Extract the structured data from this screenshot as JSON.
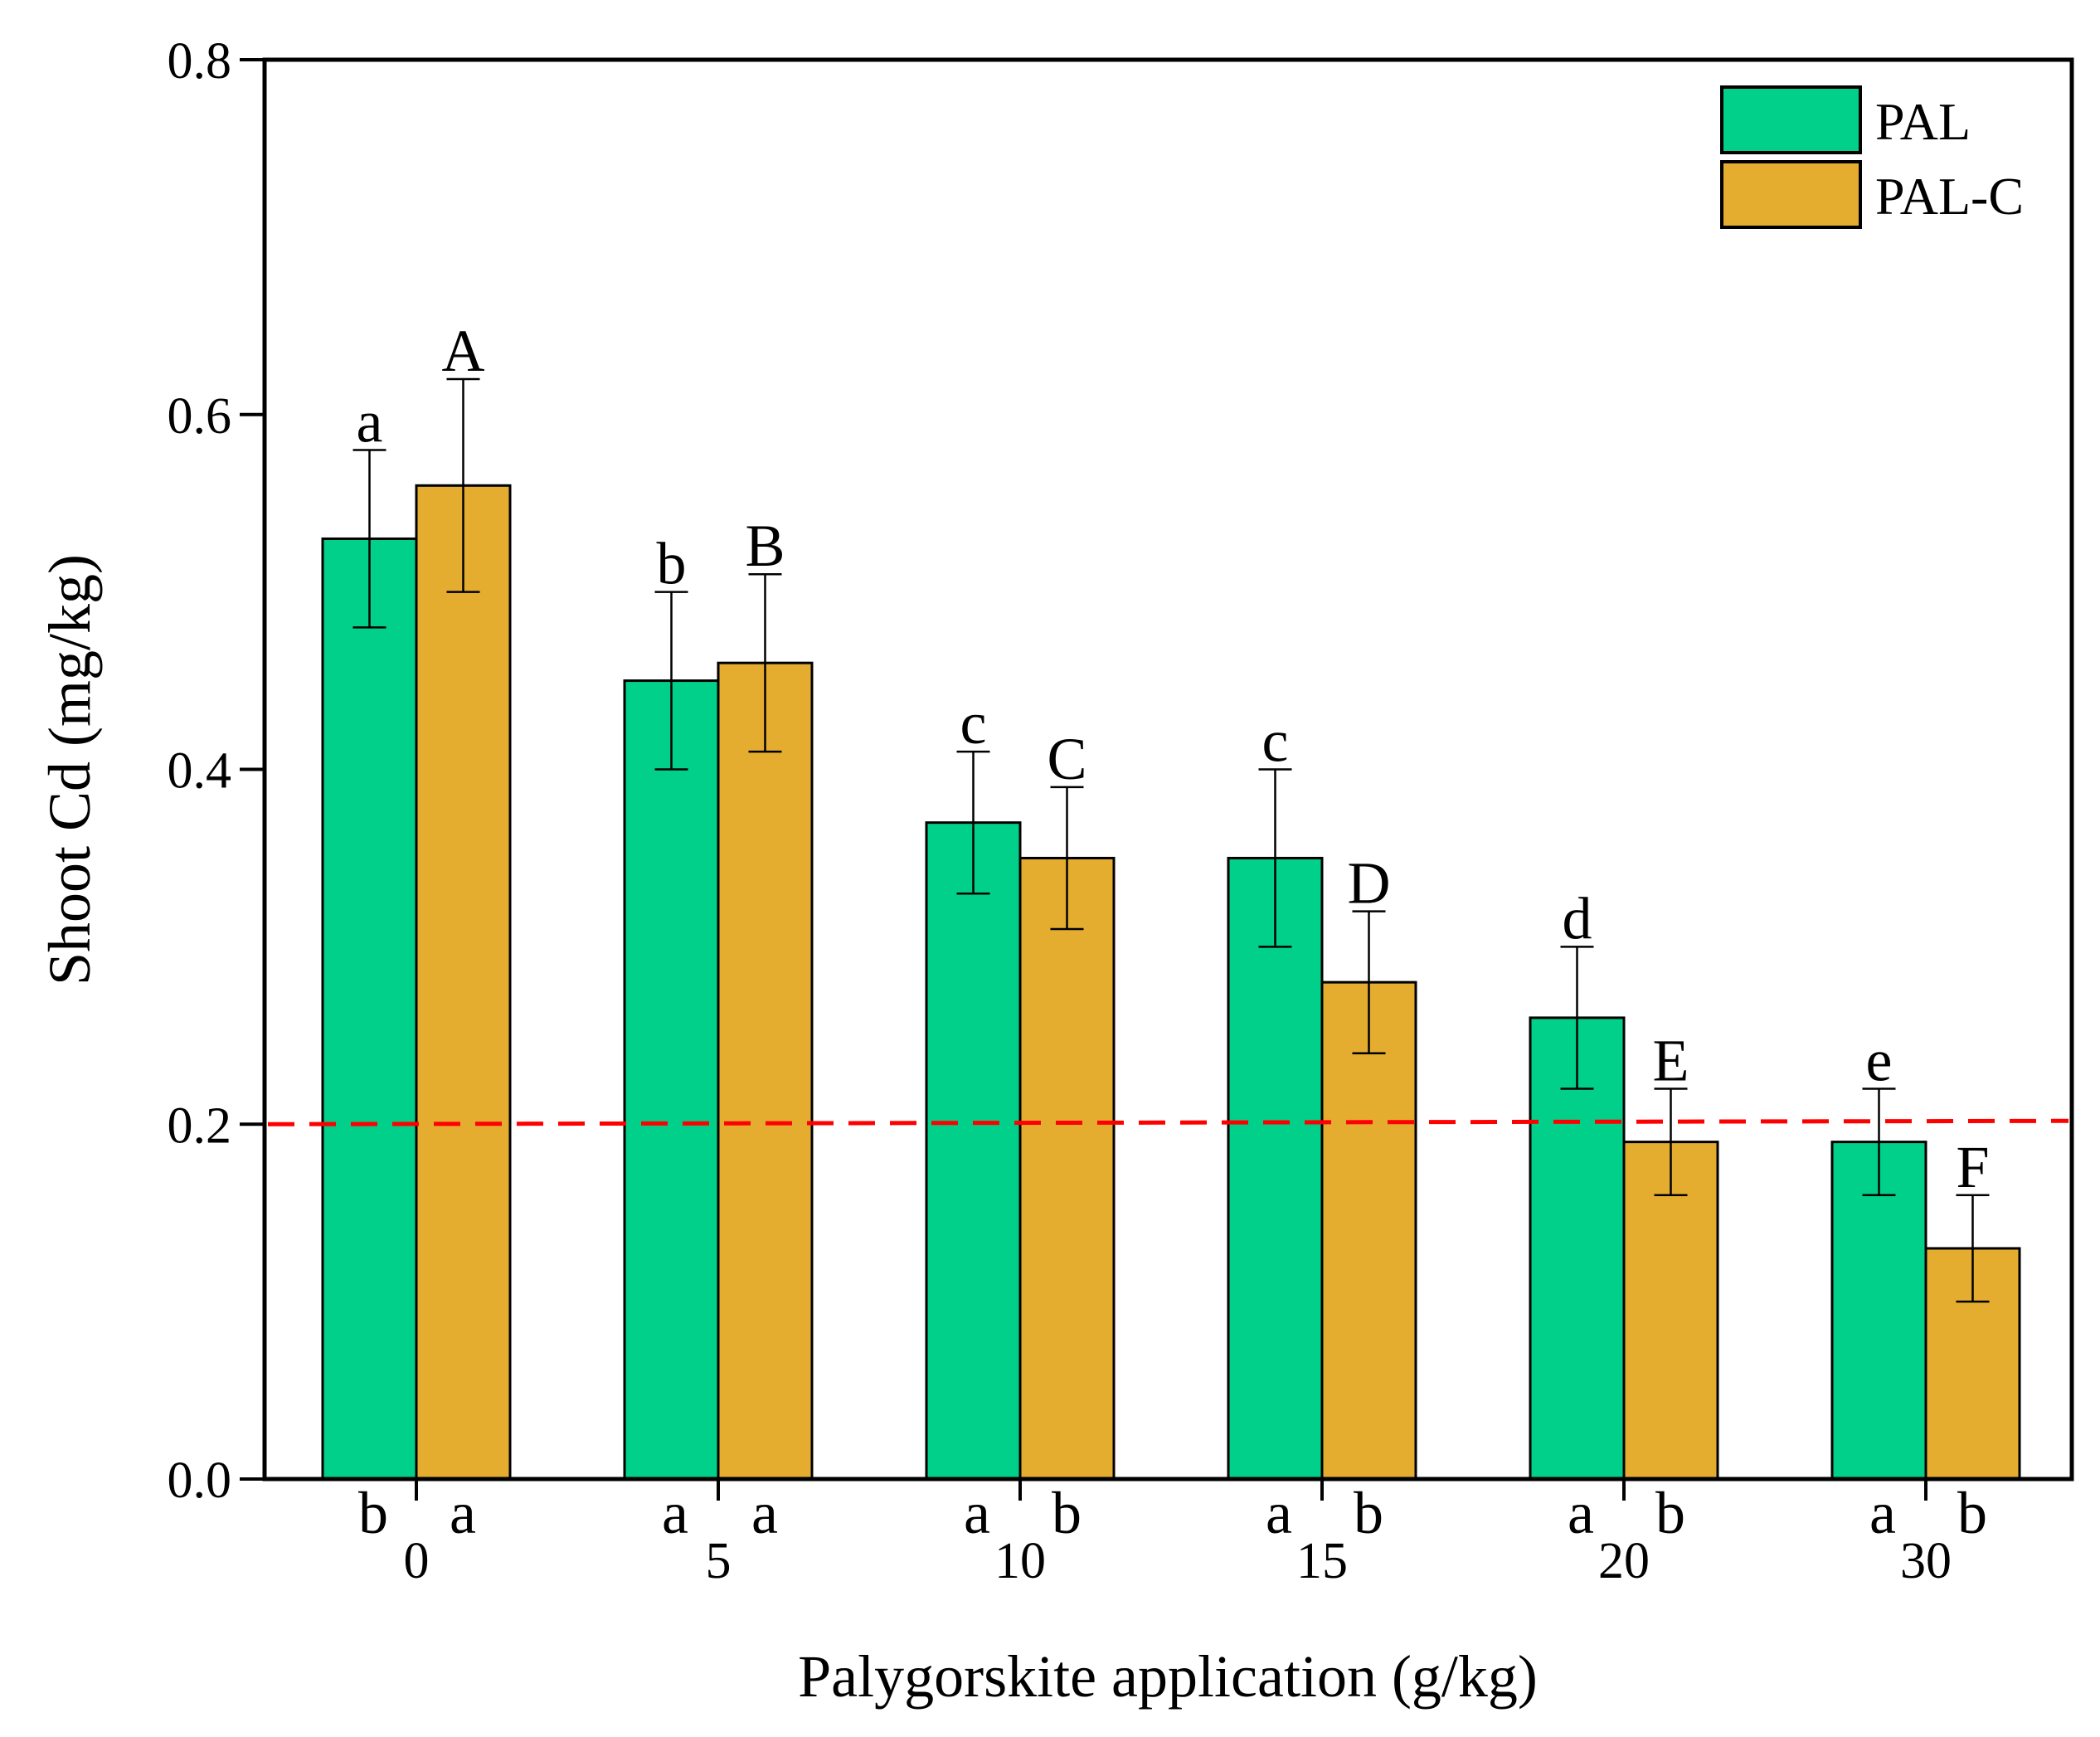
{
  "chart_data": {
    "type": "bar",
    "title": "",
    "xlabel": "Palygorskite application (g/kg)",
    "ylabel": "Shoot Cd (mg/kg)",
    "ylim": [
      0,
      0.8
    ],
    "yticks": [
      {
        "value": 0.0,
        "label": "0.0"
      },
      {
        "value": 0.2,
        "label": "0.2"
      },
      {
        "value": 0.4,
        "label": "0.4"
      },
      {
        "value": 0.6,
        "label": "0.6"
      },
      {
        "value": 0.8,
        "label": "0.8"
      }
    ],
    "categories": [
      "0",
      "5",
      "10",
      "15",
      "20",
      "30"
    ],
    "series": [
      {
        "name": "PAL",
        "color": "#00d08a",
        "values": [
          0.53,
          0.45,
          0.37,
          0.35,
          0.26,
          0.19
        ],
        "errors": [
          0.05,
          0.05,
          0.04,
          0.05,
          0.04,
          0.03
        ],
        "letters": [
          "a",
          "b",
          "c",
          "c",
          "d",
          "e"
        ],
        "bottom_letters": [
          "b",
          "a",
          "a",
          "a",
          "a",
          "a"
        ]
      },
      {
        "name": "PAL-C",
        "color": "#e5ad2f",
        "values": [
          0.56,
          0.46,
          0.35,
          0.28,
          0.19,
          0.13
        ],
        "errors": [
          0.06,
          0.05,
          0.04,
          0.04,
          0.03,
          0.03
        ],
        "letters": [
          "A",
          "B",
          "C",
          "D",
          "E",
          "F"
        ],
        "bottom_letters": [
          "a",
          "a",
          "b",
          "b",
          "b",
          "b"
        ]
      }
    ],
    "reference_line": {
      "value": 0.2,
      "color": "#ff0000",
      "style": "dashed"
    },
    "legend": {
      "position": "top-right",
      "entries": [
        "PAL",
        "PAL-C"
      ]
    },
    "grid": false
  }
}
